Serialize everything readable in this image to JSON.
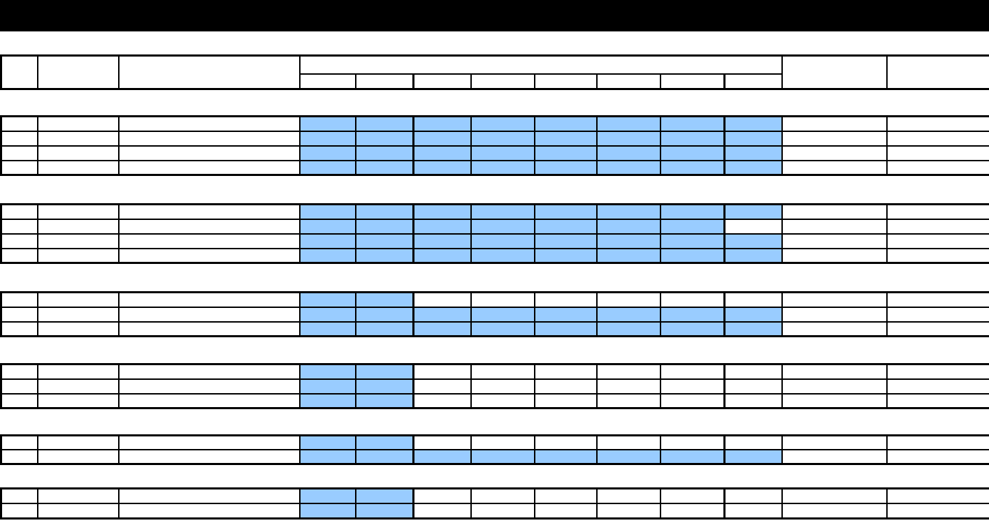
{
  "page": {
    "title_bar_text": ""
  },
  "colors": {
    "highlight_blue": "#99CCFF",
    "grid_black": "#000000",
    "title_bar_bg": "#000000"
  },
  "header": {
    "col_no": "",
    "col_item": "",
    "col_description": "",
    "gantt_group": "",
    "gantt_subcols": [
      "",
      "",
      "",
      "",
      "",
      "",
      "",
      ""
    ],
    "col_right_1": "",
    "col_right_2": ""
  },
  "chart_data": {
    "type": "table",
    "note": "Gantt-style schedule; 1 = blue filled period cell, 0 = empty, per row across 8 period columns",
    "sections": [
      {
        "rows": [
          [
            1,
            1,
            1,
            1,
            1,
            1,
            1,
            1
          ],
          [
            1,
            1,
            1,
            1,
            1,
            1,
            1,
            1
          ],
          [
            1,
            1,
            1,
            1,
            1,
            1,
            1,
            1
          ],
          [
            1,
            1,
            1,
            1,
            1,
            1,
            1,
            1
          ]
        ]
      },
      {
        "rows": [
          [
            1,
            1,
            1,
            1,
            1,
            1,
            1,
            1
          ],
          [
            1,
            1,
            1,
            1,
            1,
            1,
            1,
            0
          ],
          [
            1,
            1,
            1,
            1,
            1,
            1,
            1,
            1
          ],
          [
            1,
            1,
            1,
            1,
            1,
            1,
            1,
            1
          ]
        ]
      },
      {
        "rows": [
          [
            1,
            1,
            0,
            0,
            0,
            0,
            0,
            0
          ],
          [
            1,
            1,
            1,
            1,
            1,
            1,
            1,
            1
          ],
          [
            1,
            1,
            1,
            1,
            1,
            1,
            1,
            1
          ]
        ]
      },
      {
        "rows": [
          [
            1,
            1,
            0,
            0,
            0,
            0,
            0,
            0
          ],
          [
            1,
            1,
            0,
            0,
            0,
            0,
            0,
            0
          ],
          [
            1,
            1,
            0,
            0,
            0,
            0,
            0,
            0
          ]
        ]
      },
      {
        "rows": [
          [
            1,
            1,
            0,
            0,
            0,
            0,
            0,
            0
          ],
          [
            1,
            1,
            1,
            1,
            1,
            1,
            1,
            1
          ]
        ]
      },
      {
        "rows": [
          [
            1,
            1,
            0,
            0,
            0,
            0,
            0,
            0
          ],
          [
            1,
            1,
            0,
            0,
            0,
            0,
            0,
            0
          ]
        ]
      }
    ]
  }
}
